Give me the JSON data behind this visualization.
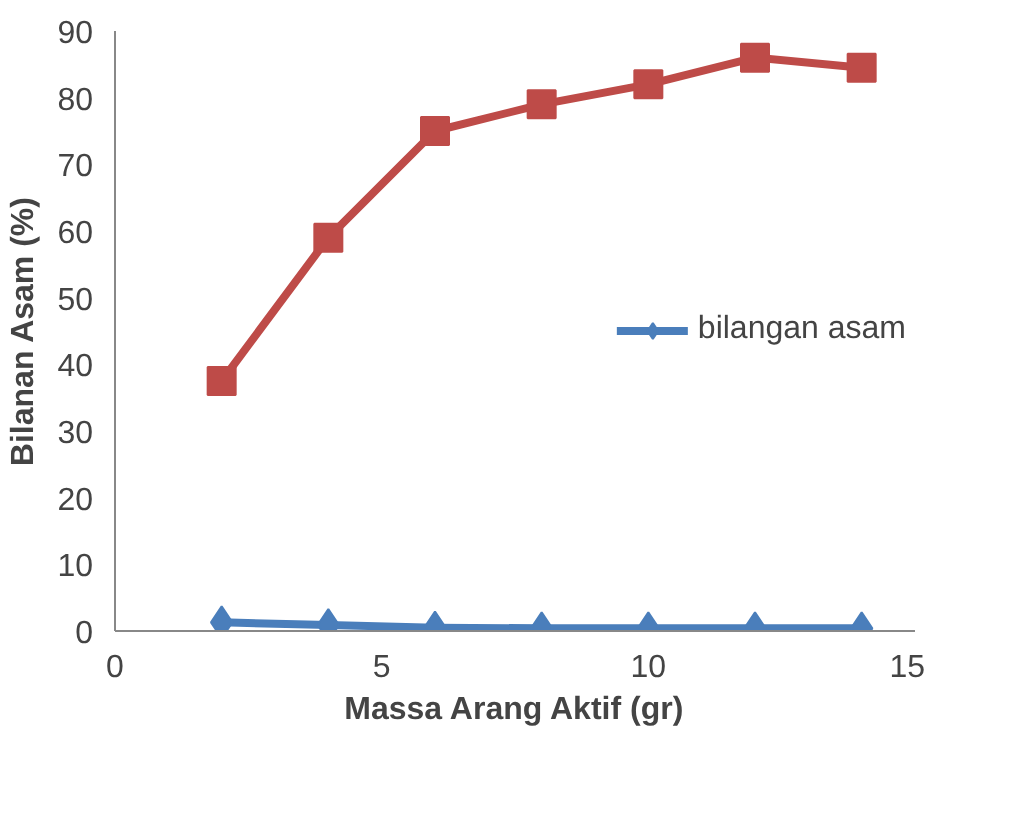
{
  "chart_data": {
    "type": "line",
    "xlabel": "Massa Arang Aktif (gr)",
    "ylabel": "Bilanan Asam (%)",
    "x": [
      2,
      4,
      6,
      8,
      10,
      12,
      14
    ],
    "series": [
      {
        "name": "bilangan asam",
        "color": "#4a7ebb",
        "marker": "diamond",
        "values": [
          1.3,
          0.9,
          0.5,
          0.4,
          0.4,
          0.4,
          0.4
        ]
      },
      {
        "color": "#be4b48",
        "marker": "square",
        "values": [
          37.5,
          59,
          75,
          79,
          82,
          86,
          84.5
        ]
      }
    ],
    "xlim": [
      0,
      15
    ],
    "xticks": [
      0,
      5,
      10,
      15
    ],
    "ylim": [
      0,
      90
    ],
    "yticks": [
      0,
      10,
      20,
      30,
      40,
      50,
      60,
      70,
      80,
      90
    ],
    "grid": false,
    "legend": "right",
    "line_style": "solid"
  }
}
